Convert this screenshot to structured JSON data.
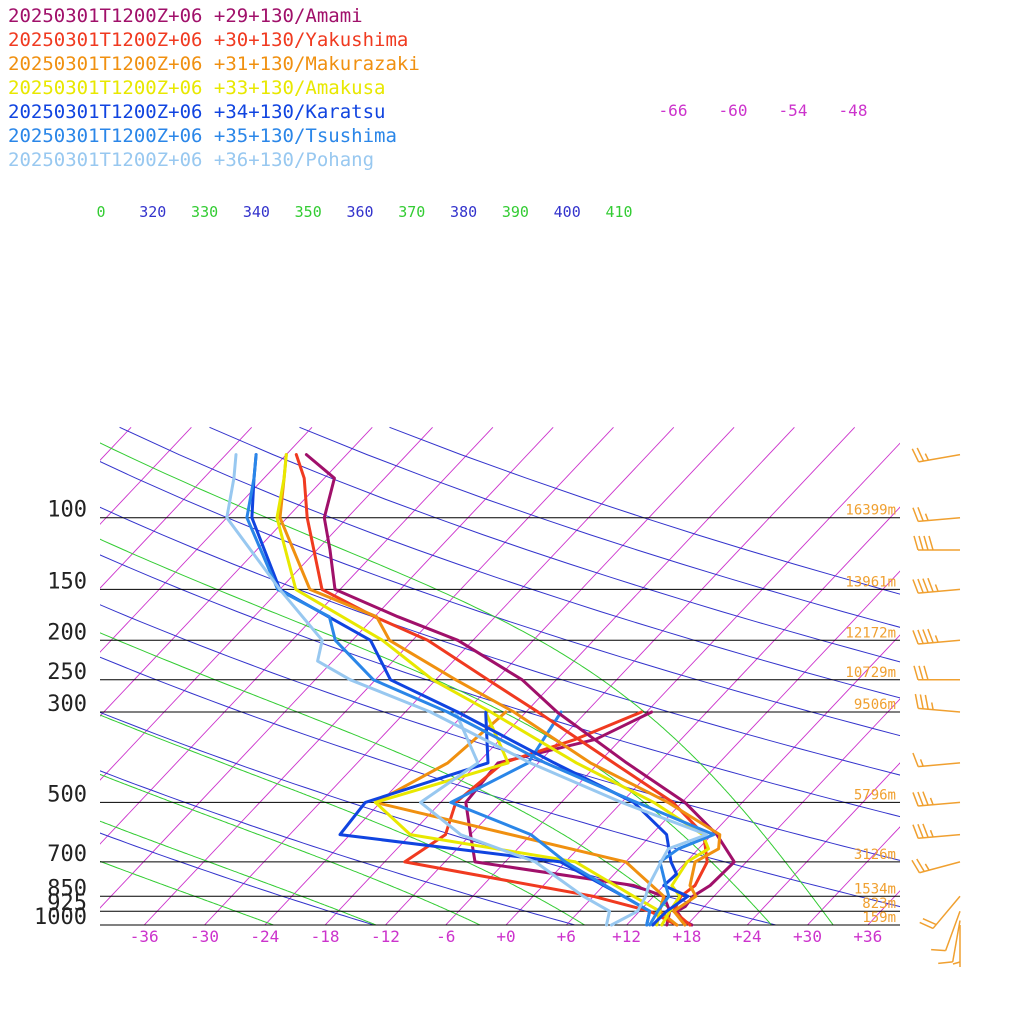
{
  "chart_data": {
    "type": "line",
    "title": "",
    "xlabel": "",
    "ylabel": "",
    "colors": {
      "isobar": "#000000",
      "isotherm": "#cc33cc",
      "dry_adiabat": "#3333cc",
      "moist_adiabat": "#33cc33",
      "height": "#f0a030",
      "wind": "#f0a030"
    },
    "pressure_levels": [
      {
        "p": 100,
        "label": "100",
        "height": "16399m"
      },
      {
        "p": 150,
        "label": "150",
        "height": "13961m"
      },
      {
        "p": 200,
        "label": "200",
        "height": "12172m"
      },
      {
        "p": 250,
        "label": "250",
        "height": "10729m"
      },
      {
        "p": 300,
        "label": "300",
        "height": "9506m"
      },
      {
        "p": 500,
        "label": "500",
        "height": "5796m"
      },
      {
        "p": 700,
        "label": "700",
        "height": "3126m"
      },
      {
        "p": 850,
        "label": "850",
        "height": "1534m"
      },
      {
        "p": 925,
        "label": "925",
        "height": "823m"
      },
      {
        "p": 1000,
        "label": "1000",
        "height": "159m"
      }
    ],
    "temp_ticks": [
      {
        "t": -36,
        "label": "-36"
      },
      {
        "t": -30,
        "label": "-30"
      },
      {
        "t": -24,
        "label": "-24"
      },
      {
        "t": -18,
        "label": "-18"
      },
      {
        "t": -12,
        "label": "-12"
      },
      {
        "t": -6,
        "label": "-6"
      },
      {
        "t": 0,
        "label": "+0"
      },
      {
        "t": 6,
        "label": "+6"
      },
      {
        "t": 12,
        "label": "+12"
      },
      {
        "t": 18,
        "label": "+18"
      },
      {
        "t": 24,
        "label": "+24"
      },
      {
        "t": 30,
        "label": "+30"
      },
      {
        "t": 36,
        "label": "+36"
      }
    ],
    "upper_temp_labels": [
      "-66",
      "-60",
      "-54",
      "-48"
    ],
    "theta_labels": [
      {
        "label": "0",
        "kind": "moist"
      },
      {
        "label": "320",
        "kind": "dry"
      },
      {
        "label": "330",
        "kind": "moist"
      },
      {
        "label": "340",
        "kind": "dry"
      },
      {
        "label": "350",
        "kind": "moist"
      },
      {
        "label": "360",
        "kind": "dry"
      },
      {
        "label": "370",
        "kind": "moist"
      },
      {
        "label": "380",
        "kind": "dry"
      },
      {
        "label": "390",
        "kind": "moist"
      },
      {
        "label": "400",
        "kind": "dry"
      },
      {
        "label": "410",
        "kind": "moist"
      }
    ],
    "series": [
      {
        "name": "20250301T1200Z+06 +29+130/Amami",
        "color": "#a0106a",
        "temp": [
          [
            1000,
            18.5
          ],
          [
            975,
            17.2
          ],
          [
            925,
            15.7
          ],
          [
            900,
            16.1
          ],
          [
            850,
            15.9
          ],
          [
            800,
            16.6
          ],
          [
            700,
            16.8
          ],
          [
            600,
            12.5
          ],
          [
            500,
            6.3
          ],
          [
            400,
            -3.2
          ],
          [
            300,
            -14.9
          ],
          [
            250,
            -21.4
          ],
          [
            200,
            -31.5
          ],
          [
            175,
            -39.7
          ],
          [
            150,
            -48.5
          ],
          [
            120,
            -52.7
          ],
          [
            100,
            -56.3
          ],
          [
            80,
            -59
          ],
          [
            70,
            -64
          ]
        ],
        "dewp": [
          [
            1000,
            16
          ],
          [
            925,
            15
          ],
          [
            850,
            13
          ],
          [
            800,
            9
          ],
          [
            700,
            -9
          ],
          [
            600,
            -12
          ],
          [
            500,
            -15.5
          ],
          [
            400,
            -16
          ],
          [
            350,
            -8.5
          ],
          [
            300,
            -5.5
          ]
        ]
      },
      {
        "name": "20250301T1200Z+06 +30+130/Yakushima",
        "color": "#f03a20",
        "temp": [
          [
            1000,
            18.3
          ],
          [
            925,
            15.4
          ],
          [
            850,
            14.7
          ],
          [
            800,
            15.1
          ],
          [
            700,
            14.1
          ],
          [
            600,
            11.2
          ],
          [
            500,
            5.1
          ],
          [
            400,
            -4.5
          ],
          [
            300,
            -16.8
          ],
          [
            250,
            -24.8
          ],
          [
            200,
            -34.5
          ],
          [
            175,
            -42
          ],
          [
            150,
            -49.8
          ],
          [
            100,
            -58
          ],
          [
            80,
            -62
          ],
          [
            70,
            -65
          ]
        ],
        "dewp": [
          [
            1000,
            17
          ],
          [
            925,
            13
          ],
          [
            850,
            6
          ],
          [
            700,
            -16
          ],
          [
            600,
            -14.5
          ],
          [
            500,
            -16.5
          ],
          [
            400,
            -15.5
          ],
          [
            350,
            -10.5
          ],
          [
            300,
            -6.5
          ]
        ]
      },
      {
        "name": "20250301T1200Z+06 +31+130/Makurazaki",
        "color": "#f09010",
        "temp": [
          [
            1000,
            17.8
          ],
          [
            925,
            15.4
          ],
          [
            850,
            16.2
          ],
          [
            800,
            14.6
          ],
          [
            700,
            12.9
          ],
          [
            650,
            14
          ],
          [
            600,
            12.8
          ],
          [
            500,
            4.6
          ],
          [
            400,
            -6.8
          ],
          [
            300,
            -19.2
          ],
          [
            250,
            -28
          ],
          [
            200,
            -38.3
          ],
          [
            175,
            -41.8
          ],
          [
            150,
            -51
          ],
          [
            100,
            -60.7
          ],
          [
            80,
            -64
          ],
          [
            70,
            -66
          ]
        ],
        "dewp": [
          [
            1000,
            17
          ],
          [
            925,
            14
          ],
          [
            850,
            13
          ],
          [
            700,
            6
          ],
          [
            500,
            -24.5
          ],
          [
            400,
            -21
          ],
          [
            300,
            -20
          ]
        ]
      },
      {
        "name": "20250301T1200Z+06 +33+130/Amakusa",
        "color": "#e8e800",
        "temp": [
          [
            1000,
            15.5
          ],
          [
            925,
            15
          ],
          [
            850,
            14.6
          ],
          [
            800,
            12.8
          ],
          [
            700,
            12.1
          ],
          [
            650,
            13
          ],
          [
            600,
            11.1
          ],
          [
            500,
            3.2
          ],
          [
            400,
            -8.2
          ],
          [
            300,
            -21.5
          ],
          [
            250,
            -30.3
          ],
          [
            200,
            -39
          ],
          [
            150,
            -52.4
          ],
          [
            100,
            -61
          ],
          [
            80,
            -64
          ],
          [
            70,
            -66
          ]
        ],
        "dewp": [
          [
            1000,
            15
          ],
          [
            925,
            14
          ],
          [
            850,
            10
          ],
          [
            700,
            1
          ],
          [
            600,
            -18
          ],
          [
            500,
            -24.5
          ],
          [
            400,
            -15
          ],
          [
            300,
            -22
          ]
        ]
      },
      {
        "name": "20250301T1200Z+06 +34+130/Karatsu",
        "color": "#1044e0",
        "temp": [
          [
            1000,
            14.6
          ],
          [
            925,
            14.7
          ],
          [
            850,
            15.4
          ],
          [
            800,
            12
          ],
          [
            750,
            12.2
          ],
          [
            700,
            10.5
          ],
          [
            600,
            7.5
          ],
          [
            500,
            1.2
          ],
          [
            400,
            -10.4
          ],
          [
            300,
            -24.8
          ],
          [
            250,
            -34.5
          ],
          [
            200,
            -40.2
          ],
          [
            150,
            -54
          ],
          [
            100,
            -63.5
          ],
          [
            80,
            -67
          ],
          [
            70,
            -69
          ]
        ],
        "dewp": [
          [
            1000,
            14
          ],
          [
            925,
            13
          ],
          [
            850,
            9
          ],
          [
            700,
            -0.5
          ],
          [
            600,
            -25
          ],
          [
            500,
            -25.5
          ],
          [
            400,
            -17
          ],
          [
            300,
            -22
          ]
        ]
      },
      {
        "name": "20250301T1200Z+06 +35+130/Tsushima",
        "color": "#2a86e8",
        "temp": [
          [
            1000,
            14.3
          ],
          [
            925,
            13.8
          ],
          [
            850,
            13.5
          ],
          [
            800,
            12.2
          ],
          [
            700,
            9.4
          ],
          [
            650,
            10
          ],
          [
            600,
            12.2
          ],
          [
            500,
            1.5
          ],
          [
            400,
            -11.3
          ],
          [
            300,
            -25.8
          ],
          [
            250,
            -36.2
          ],
          [
            200,
            -43.7
          ],
          [
            175,
            -46.5
          ],
          [
            150,
            -54.2
          ],
          [
            100,
            -64
          ],
          [
            80,
            -67
          ],
          [
            70,
            -69
          ]
        ],
        "dewp": [
          [
            1000,
            14
          ],
          [
            925,
            13
          ],
          [
            850,
            9
          ],
          [
            700,
            0
          ],
          [
            600,
            -6
          ],
          [
            500,
            -17
          ],
          [
            400,
            -13
          ],
          [
            300,
            -14.5
          ]
        ]
      },
      {
        "name": "20250301T1200Z+06 +36+130/Pohang",
        "color": "#98c8f0",
        "temp": [
          [
            1000,
            10.5
          ],
          [
            925,
            11.8
          ],
          [
            850,
            11.2
          ],
          [
            800,
            10.5
          ],
          [
            700,
            9.5
          ],
          [
            650,
            9
          ],
          [
            600,
            11.5
          ],
          [
            500,
            0
          ],
          [
            400,
            -12.8
          ],
          [
            300,
            -27.5
          ],
          [
            250,
            -38.5
          ],
          [
            225,
            -43.5
          ],
          [
            200,
            -45
          ],
          [
            150,
            -54
          ],
          [
            100,
            -66
          ],
          [
            80,
            -69
          ],
          [
            70,
            -71
          ]
        ],
        "dewp": [
          [
            1000,
            10
          ],
          [
            925,
            9
          ],
          [
            850,
            5
          ],
          [
            700,
            -3
          ],
          [
            600,
            -13
          ],
          [
            500,
            -20
          ],
          [
            400,
            -18
          ],
          [
            300,
            -25
          ]
        ]
      }
    ],
    "wind_profile": [
      {
        "p": 70,
        "speed_kt": 25,
        "dir": 260
      },
      {
        "p": 100,
        "speed_kt": 25,
        "dir": 265
      },
      {
        "p": 120,
        "speed_kt": 40,
        "dir": 270
      },
      {
        "p": 150,
        "speed_kt": 45,
        "dir": 265
      },
      {
        "p": 200,
        "speed_kt": 45,
        "dir": 265
      },
      {
        "p": 250,
        "speed_kt": 30,
        "dir": 270
      },
      {
        "p": 300,
        "speed_kt": 35,
        "dir": 275
      },
      {
        "p": 400,
        "speed_kt": 15,
        "dir": 265
      },
      {
        "p": 500,
        "speed_kt": 35,
        "dir": 265
      },
      {
        "p": 600,
        "speed_kt": 35,
        "dir": 265
      },
      {
        "p": 700,
        "speed_kt": 25,
        "dir": 255
      },
      {
        "p": 850,
        "speed_kt": 20,
        "dir": 220
      },
      {
        "p": 925,
        "speed_kt": 10,
        "dir": 200
      },
      {
        "p": 975,
        "speed_kt": 10,
        "dir": 190
      },
      {
        "p": 1000,
        "speed_kt": 5,
        "dir": 180
      }
    ]
  }
}
